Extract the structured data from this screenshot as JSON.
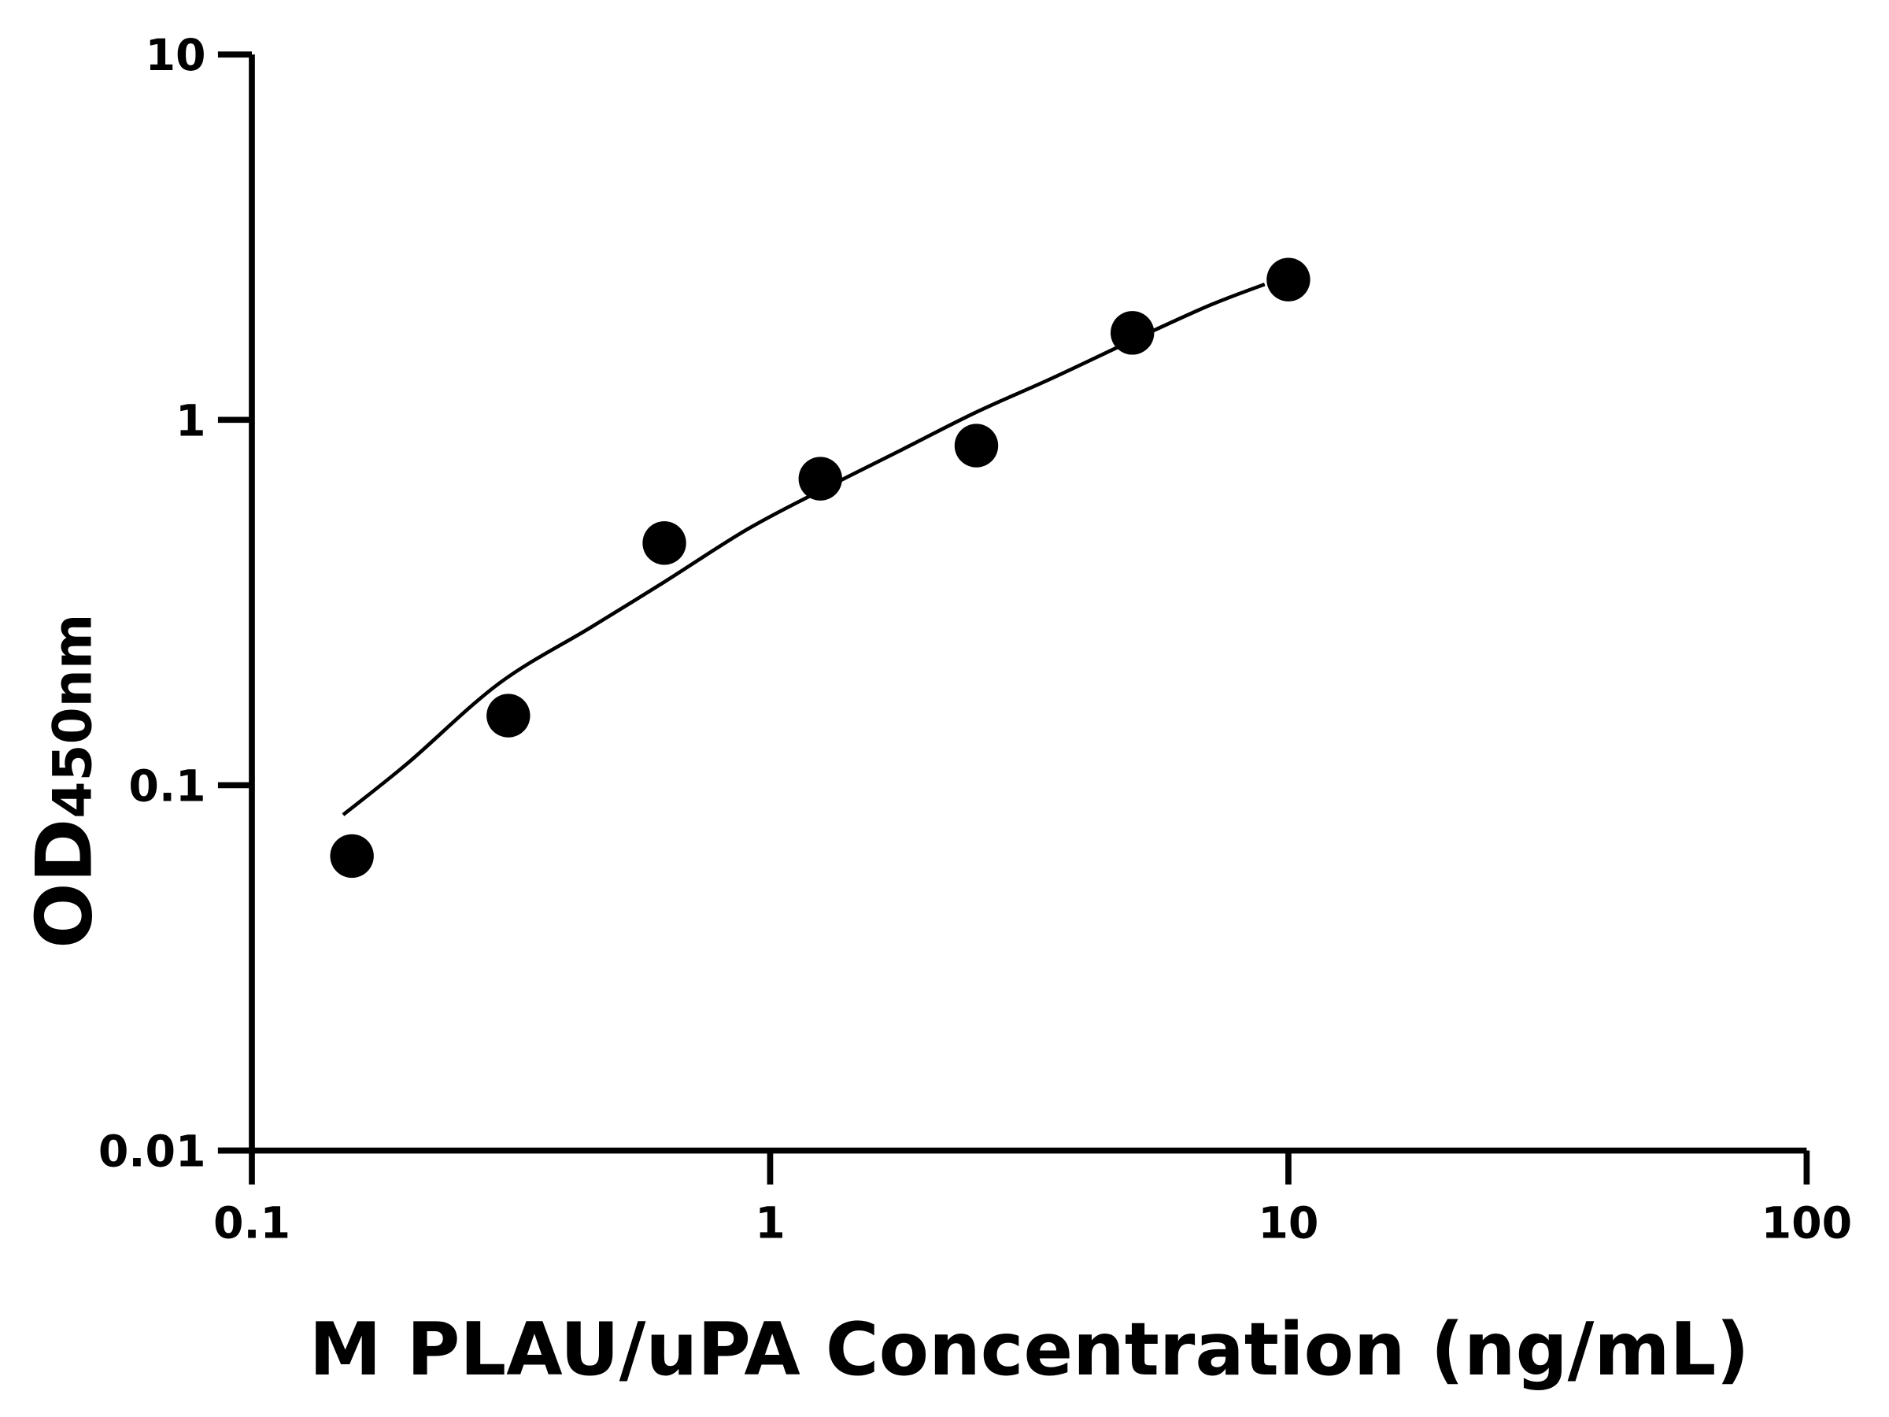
{
  "chart_data": {
    "type": "scatter",
    "title": "",
    "xlabel": "M PLAU/uPA Concentration (ng/mL)",
    "ylabel_main": "OD",
    "ylabel_sub": "450nm",
    "xscale": "log",
    "yscale": "log",
    "xlim": [
      0.1,
      100
    ],
    "ylim": [
      0.01,
      10
    ],
    "xticks": [
      0.1,
      1,
      10,
      100
    ],
    "xtick_labels": [
      "0.1",
      "1",
      "10",
      "100"
    ],
    "yticks": [
      0.01,
      0.1,
      1,
      10
    ],
    "ytick_labels": [
      "0.01",
      "0.1",
      "1",
      "10"
    ],
    "grid": false,
    "points": {
      "x": [
        0.156,
        0.3125,
        0.625,
        1.25,
        2.5,
        5,
        10
      ],
      "y": [
        0.064,
        0.155,
        0.46,
        0.69,
        0.85,
        1.73,
        2.42
      ]
    },
    "fit_curve": {
      "x": [
        0.15,
        0.2,
        0.3,
        0.45,
        0.625,
        0.9,
        1.25,
        1.8,
        2.5,
        3.5,
        5,
        7,
        9
      ],
      "y": [
        0.083,
        0.115,
        0.19,
        0.27,
        0.36,
        0.5,
        0.64,
        0.83,
        1.05,
        1.3,
        1.65,
        2.05,
        2.35
      ]
    },
    "color": "#000000"
  }
}
